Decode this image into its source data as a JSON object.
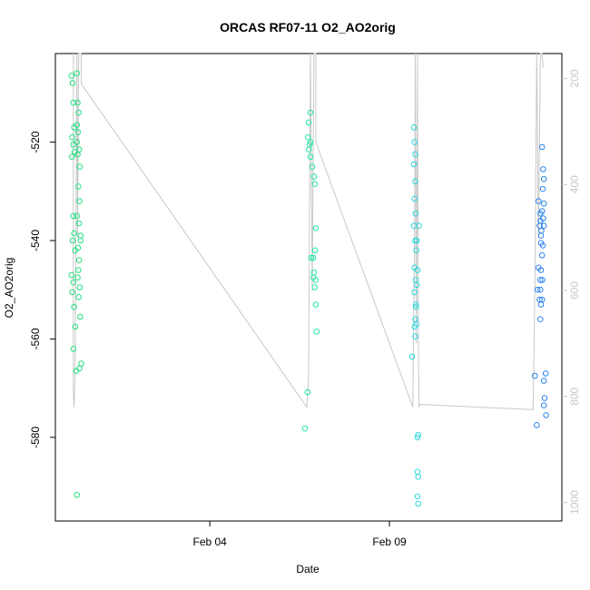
{
  "chart_data": {
    "type": "scatter",
    "title": "ORCAS RF07-11 O2_AO2orig",
    "xlabel": "Date",
    "ylabel": "O2_AO2orig",
    "x_ticks": [
      {
        "label": "Feb 04",
        "value": 4.0
      },
      {
        "label": "Feb 09",
        "value": 9.0
      }
    ],
    "y_ticks": [
      {
        "label": "-520",
        "value": -520
      },
      {
        "label": "-540",
        "value": -540
      },
      {
        "label": "-560",
        "value": -560
      },
      {
        "label": "-580",
        "value": -580
      }
    ],
    "y2_ticks": [
      {
        "label": "200",
        "value": 200
      },
      {
        "label": "400",
        "value": 400
      },
      {
        "label": "600",
        "value": 600
      },
      {
        "label": "800",
        "value": 800
      },
      {
        "label": "1000",
        "value": 1000
      }
    ],
    "xlim": [
      -0.3,
      13.8
    ],
    "ylim": [
      -597.0,
      -502.0
    ],
    "y2lim": [
      1035,
      153
    ],
    "colors": {
      "line": "#c8c8c8",
      "axis": "#000000",
      "secondary_axis": "#c8c8c8"
    },
    "series": [
      {
        "color": "#22e07e",
        "points": [
          [
            0.15,
            -506.5
          ],
          [
            0.18,
            -508.0
          ],
          [
            0.2,
            -512.0
          ],
          [
            0.22,
            -517.0
          ],
          [
            0.17,
            -519.0
          ],
          [
            0.2,
            -520.5
          ],
          [
            0.23,
            -522.0
          ],
          [
            0.16,
            -523.0
          ],
          [
            0.2,
            -535.0
          ],
          [
            0.22,
            -538.5
          ],
          [
            0.18,
            -540.0
          ],
          [
            0.25,
            -542.0
          ],
          [
            0.15,
            -547.0
          ],
          [
            0.2,
            -548.5
          ],
          [
            0.17,
            -550.5
          ],
          [
            0.22,
            -553.5
          ],
          [
            0.25,
            -557.5
          ],
          [
            0.2,
            -562.0
          ],
          [
            0.28,
            -566.5
          ],
          [
            0.3,
            -591.7
          ],
          [
            0.3,
            -506.0
          ],
          [
            0.32,
            -512.0
          ],
          [
            0.35,
            -514.0
          ],
          [
            0.3,
            -516.5
          ],
          [
            0.33,
            -518.0
          ],
          [
            0.3,
            -520.0
          ],
          [
            0.36,
            -521.5
          ],
          [
            0.32,
            -522.5
          ],
          [
            0.38,
            -525.0
          ],
          [
            0.34,
            -529.0
          ],
          [
            0.37,
            -532.0
          ],
          [
            0.3,
            -535.0
          ],
          [
            0.36,
            -536.5
          ],
          [
            0.4,
            -539.0
          ],
          [
            0.33,
            -541.5
          ],
          [
            0.36,
            -544.0
          ],
          [
            0.32,
            -547.5
          ],
          [
            0.38,
            -549.5
          ],
          [
            0.35,
            -551.5
          ],
          [
            0.39,
            -555.5
          ],
          [
            0.42,
            -565.0
          ],
          [
            0.37,
            -566.0
          ],
          [
            0.4,
            -540.0
          ],
          [
            0.34,
            -546.0
          ]
        ]
      },
      {
        "color": "#22e8a8",
        "points": [
          [
            6.72,
            -570.8
          ],
          [
            6.65,
            -578.2
          ],
          [
            6.75,
            -516.0
          ],
          [
            6.8,
            -514.0
          ],
          [
            6.73,
            -519.0
          ],
          [
            6.78,
            -520.5
          ],
          [
            6.76,
            -521.5
          ],
          [
            6.8,
            -523.0
          ],
          [
            6.85,
            -525.0
          ],
          [
            6.9,
            -527.0
          ],
          [
            6.92,
            -528.5
          ],
          [
            6.95,
            -537.5
          ],
          [
            6.93,
            -542.0
          ],
          [
            6.88,
            -543.5
          ],
          [
            6.82,
            -543.5
          ],
          [
            6.9,
            -546.5
          ],
          [
            6.95,
            -548.0
          ],
          [
            6.88,
            -547.5
          ],
          [
            6.92,
            -549.5
          ],
          [
            6.95,
            -553.0
          ],
          [
            6.97,
            -558.5
          ],
          [
            6.8,
            -520.0
          ]
        ]
      },
      {
        "color": "#2ad8dc",
        "points": [
          [
            9.63,
            -563.6
          ],
          [
            9.68,
            -517.0
          ],
          [
            9.7,
            -520.0
          ],
          [
            9.72,
            -522.5
          ],
          [
            9.68,
            -524.5
          ],
          [
            9.72,
            -528.0
          ],
          [
            9.7,
            -531.5
          ],
          [
            9.73,
            -534.5
          ],
          [
            9.68,
            -537.0
          ],
          [
            9.72,
            -540.0
          ],
          [
            9.75,
            -542.0
          ],
          [
            9.7,
            -545.5
          ],
          [
            9.73,
            -548.0
          ],
          [
            9.7,
            -550.5
          ],
          [
            9.74,
            -553.0
          ],
          [
            9.72,
            -556.0
          ],
          [
            9.75,
            -557.0
          ],
          [
            9.78,
            -546.0
          ],
          [
            9.76,
            -549.0
          ],
          [
            9.74,
            -553.5
          ],
          [
            9.7,
            -557.5
          ],
          [
            9.72,
            -559.5
          ],
          [
            9.8,
            -579.5
          ],
          [
            9.78,
            -580.0
          ],
          [
            9.78,
            -587.0
          ],
          [
            9.8,
            -588.0
          ],
          [
            9.78,
            -592.0
          ],
          [
            9.8,
            -593.5
          ],
          [
            9.76,
            -540.0
          ],
          [
            9.82,
            -537.0
          ]
        ]
      },
      {
        "color": "#2a82ea",
        "points": [
          [
            13.05,
            -567.5
          ],
          [
            13.1,
            -577.5
          ],
          [
            13.35,
            -567.0
          ],
          [
            13.3,
            -568.5
          ],
          [
            13.32,
            -572.0
          ],
          [
            13.3,
            -573.5
          ],
          [
            13.36,
            -575.5
          ],
          [
            13.25,
            -521.0
          ],
          [
            13.28,
            -525.5
          ],
          [
            13.3,
            -527.5
          ],
          [
            13.27,
            -529.5
          ],
          [
            13.3,
            -532.5
          ],
          [
            13.25,
            -534.0
          ],
          [
            13.28,
            -535.5
          ],
          [
            13.3,
            -537.0
          ],
          [
            13.22,
            -539.0
          ],
          [
            13.27,
            -541.0
          ],
          [
            13.25,
            -543.0
          ],
          [
            13.22,
            -546.0
          ],
          [
            13.26,
            -548.0
          ],
          [
            13.2,
            -550.0
          ],
          [
            13.25,
            -552.0
          ],
          [
            13.22,
            -553.0
          ],
          [
            13.2,
            -556.0
          ],
          [
            13.15,
            -532.0
          ],
          [
            13.2,
            -534.5
          ],
          [
            13.18,
            -537.0
          ],
          [
            13.22,
            -540.5
          ],
          [
            13.15,
            -545.5
          ],
          [
            13.2,
            -548.0
          ],
          [
            13.18,
            -552.0
          ],
          [
            13.12,
            -550.0
          ],
          [
            13.2,
            -536.0
          ],
          [
            13.23,
            -538.0
          ]
        ]
      }
    ],
    "line_series": {
      "color": "#c8c8c8",
      "points": [
        [
          0.2,
          153
        ],
        [
          0.2,
          790
        ],
        [
          0.22,
          820
        ],
        [
          0.25,
          760
        ],
        [
          0.3,
          153
        ],
        [
          0.32,
          500
        ],
        [
          0.35,
          153
        ],
        [
          0.37,
          150
        ],
        [
          0.4,
          153
        ],
        [
          0.42,
          153
        ],
        [
          0.42,
          210
        ],
        [
          6.7,
          820
        ],
        [
          6.75,
          760
        ],
        [
          6.8,
          153
        ],
        [
          6.85,
          600
        ],
        [
          6.9,
          153
        ],
        [
          6.95,
          153
        ],
        [
          6.95,
          320
        ],
        [
          9.65,
          820
        ],
        [
          9.7,
          500
        ],
        [
          9.72,
          153
        ],
        [
          9.75,
          700
        ],
        [
          9.78,
          153
        ],
        [
          9.8,
          600
        ],
        [
          9.82,
          820
        ],
        [
          9.85,
          815
        ],
        [
          13.0,
          825
        ],
        [
          13.05,
          600
        ],
        [
          13.1,
          153
        ],
        [
          13.15,
          500
        ],
        [
          13.2,
          153
        ],
        [
          13.25,
          153
        ],
        [
          13.28,
          180
        ]
      ]
    }
  }
}
